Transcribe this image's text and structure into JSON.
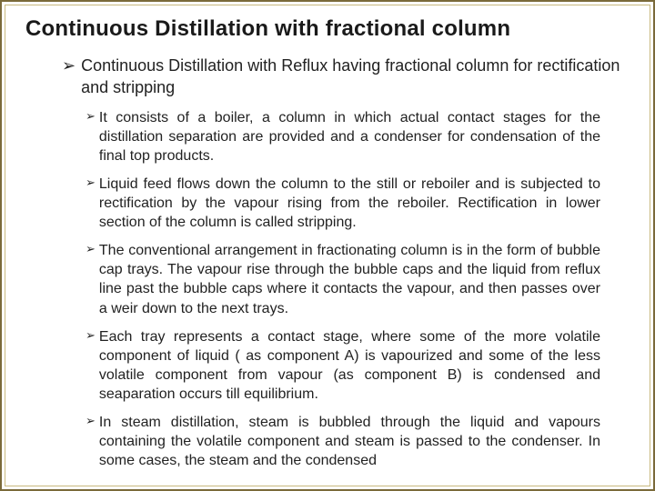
{
  "title_fontsize": 24,
  "main_fontsize": 18,
  "sub_fontsize": 16,
  "sub_arrow_fontsize": 13,
  "text_color": "#222222",
  "frame_outer_color": "#7a6a3a",
  "frame_inner_color": "#c9b97f",
  "background_color": "#ffffff",
  "title": "Continuous  Distillation with fractional column",
  "main_bullet": "Continuous Distillation with Reflux having fractional column for rectification and stripping",
  "sub_bullets": [
    "It consists of a boiler, a column in which actual contact stages for the distillation separation are provided and a condenser for condensation of the final top products.",
    "Liquid feed flows down the column to the still or reboiler and is subjected to rectification by the vapour rising from the reboiler. Rectification in lower section of the column is called stripping.",
    "The conventional arrangement in fractionating column is in the form of bubble cap trays.  The vapour rise through the bubble caps and the liquid from reflux line past the bubble caps where it contacts the vapour, and then passes over a weir down to the next trays.",
    "Each tray represents a contact stage, where some of the more volatile component of liquid ( as component A) is vapourized and some of the less volatile component from vapour (as component B) is condensed and seaparation occurs till equilibrium.",
    "In steam distillation, steam is bubbled through the liquid and vapours containing the volatile component and steam is passed to the condenser. In some cases, the steam and the condensed"
  ]
}
